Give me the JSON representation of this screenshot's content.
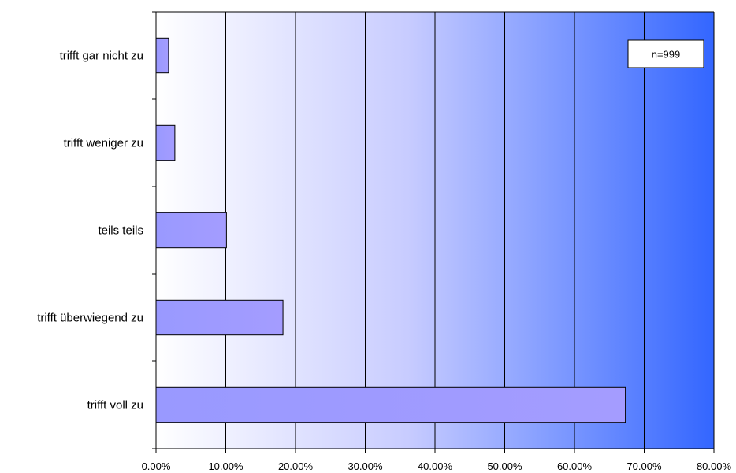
{
  "chart_data": {
    "type": "bar",
    "orientation": "horizontal",
    "categories": [
      "trifft gar nicht zu",
      "trifft weniger zu",
      "teils teils",
      "trifft überwiegend zu",
      "trifft voll zu"
    ],
    "values": [
      1.8,
      2.7,
      10.1,
      18.2,
      67.3
    ],
    "xlim": [
      0,
      80
    ],
    "xticks": [
      "0.00%",
      "10.00%",
      "20.00%",
      "30.00%",
      "40.00%",
      "50.00%",
      "60.00%",
      "70.00%",
      "80.00%"
    ],
    "grid": true,
    "annotation": "n=999",
    "annotation_placement": "top-right",
    "colors": {
      "bar_fill": "#9999ff",
      "bar_stroke": "#000000",
      "bg_light": "#ffffff",
      "bg_dark": "#3366ff"
    }
  }
}
